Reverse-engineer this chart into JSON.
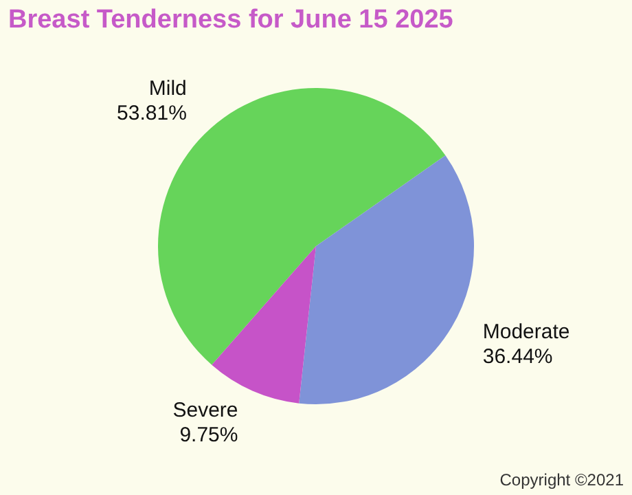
{
  "chart_data": {
    "type": "pie",
    "title": "Breast Tenderness for June 15 2025",
    "categories": [
      "Mild",
      "Moderate",
      "Severe"
    ],
    "values": [
      53.81,
      36.44,
      9.75
    ],
    "colors": [
      "#66d45a",
      "#7f93d8",
      "#c653c8"
    ],
    "value_labels": [
      "53.81%",
      "36.44%",
      "9.75%"
    ],
    "annotations": [
      "Copyright ©2021"
    ]
  }
}
